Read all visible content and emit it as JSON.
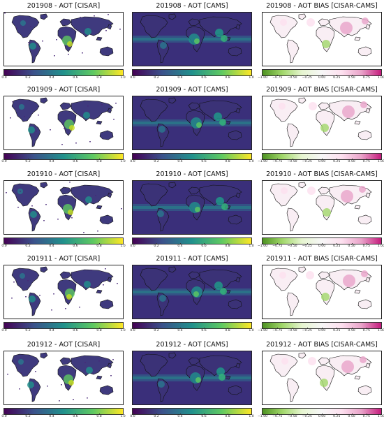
{
  "figure": {
    "rows": [
      {
        "month": "201908",
        "panels": [
          {
            "title": "201908 - AOT [CISAR]",
            "kind": "cisar",
            "colorbar": "viridis",
            "ticks": [
              "0.0",
              "0.2",
              "0.4",
              "0.6",
              "0.8",
              "1.0"
            ]
          },
          {
            "title": "201908 - AOT [CAMS]",
            "kind": "cams",
            "colorbar": "viridis",
            "ticks": [
              "0.0",
              "0.2",
              "0.4",
              "0.6",
              "0.8",
              "1.0"
            ]
          },
          {
            "title": "201908 - AOT BIAS [CISAR-CAMS]",
            "kind": "bias",
            "colorbar": "piyg",
            "ticks": [
              "−1.00",
              "−0.75",
              "−0.50",
              "−0.25",
              "0.00",
              "0.25",
              "0.50",
              "0.75",
              "1.00"
            ]
          }
        ]
      },
      {
        "month": "201909",
        "panels": [
          {
            "title": "201909 - AOT [CISAR]",
            "kind": "cisar",
            "colorbar": "viridis",
            "ticks": [
              "0.0",
              "0.2",
              "0.4",
              "0.6",
              "0.8",
              "1.0"
            ]
          },
          {
            "title": "201909 - AOT [CAMS]",
            "kind": "cams",
            "colorbar": "viridis",
            "ticks": [
              "0.0",
              "0.2",
              "0.4",
              "0.6",
              "0.8",
              "1.0"
            ]
          },
          {
            "title": "201909 - AOT BIAS [CISAR-CAMS]",
            "kind": "bias",
            "colorbar": "piyg",
            "ticks": [
              "−1.00",
              "−0.75",
              "−0.50",
              "−0.25",
              "0.00",
              "0.25",
              "0.50",
              "0.75",
              "1.00"
            ]
          }
        ]
      },
      {
        "month": "201910",
        "panels": [
          {
            "title": "201910 - AOT [CISAR]",
            "kind": "cisar",
            "colorbar": "viridis",
            "ticks": [
              "0.0",
              "0.2",
              "0.4",
              "0.6",
              "0.8",
              "1.0"
            ]
          },
          {
            "title": "201910 - AOT [CAMS]",
            "kind": "cams",
            "colorbar": "viridis",
            "ticks": [
              "0.0",
              "0.2",
              "0.4",
              "0.6",
              "0.8",
              "1.0"
            ]
          },
          {
            "title": "201910 - AOT BIAS [CISAR-CAMS]",
            "kind": "bias",
            "colorbar": "piyg",
            "ticks": [
              "−1.00",
              "−0.75",
              "−0.50",
              "−0.25",
              "0.00",
              "0.25",
              "0.50",
              "0.75",
              "1.00"
            ]
          }
        ]
      },
      {
        "month": "201911",
        "panels": [
          {
            "title": "201911 - AOT [CISAR]",
            "kind": "cisar",
            "colorbar": "viridis",
            "ticks": [
              "0.0",
              "0.2",
              "0.4",
              "0.6",
              "0.8",
              "1.0"
            ]
          },
          {
            "title": "201911 - AOT [CAMS]",
            "kind": "cams",
            "colorbar": "viridis",
            "ticks": [
              "0.0",
              "0.2",
              "0.4",
              "0.6",
              "0.8",
              "1.0"
            ]
          },
          {
            "title": "201911 - AOT BIAS [CISAR-CAMS]",
            "kind": "bias",
            "colorbar": "piyg",
            "ticks": [
              "−1.00",
              "−0.75",
              "−0.50",
              "−0.25",
              "0.00",
              "0.25",
              "0.50",
              "0.75",
              "1.00"
            ]
          }
        ]
      },
      {
        "month": "201912",
        "panels": [
          {
            "title": "201912 - AOT [CISAR]",
            "kind": "cisar",
            "colorbar": "viridis",
            "ticks": [
              "0.0",
              "0.2",
              "0.4",
              "0.6",
              "0.8",
              "1.0"
            ]
          },
          {
            "title": "201912 - AOT [CAMS]",
            "kind": "cams",
            "colorbar": "viridis",
            "ticks": [
              "0.0",
              "0.2",
              "0.4",
              "0.6",
              "0.8",
              "1.0"
            ]
          },
          {
            "title": "201912 - AOT BIAS [CISAR-CAMS]",
            "kind": "bias",
            "colorbar": "piyg",
            "ticks": [
              "−1.00",
              "−0.75",
              "−0.50",
              "−0.25",
              "0.00",
              "0.25",
              "0.50",
              "0.75",
              "1.00"
            ]
          }
        ]
      }
    ],
    "colors": {
      "viridis": [
        "#440154",
        "#3b528b",
        "#21918c",
        "#5ec962",
        "#fde725"
      ],
      "piyg": [
        "#4d9221",
        "#a1d76a",
        "#e6f5d0",
        "#f7f7f7",
        "#fde0ef",
        "#e9a3c9",
        "#c51b7d"
      ],
      "cams_ocean": "#3a2f7a",
      "cisar_land": "#3f3a7e",
      "coastline": "#111111"
    }
  }
}
